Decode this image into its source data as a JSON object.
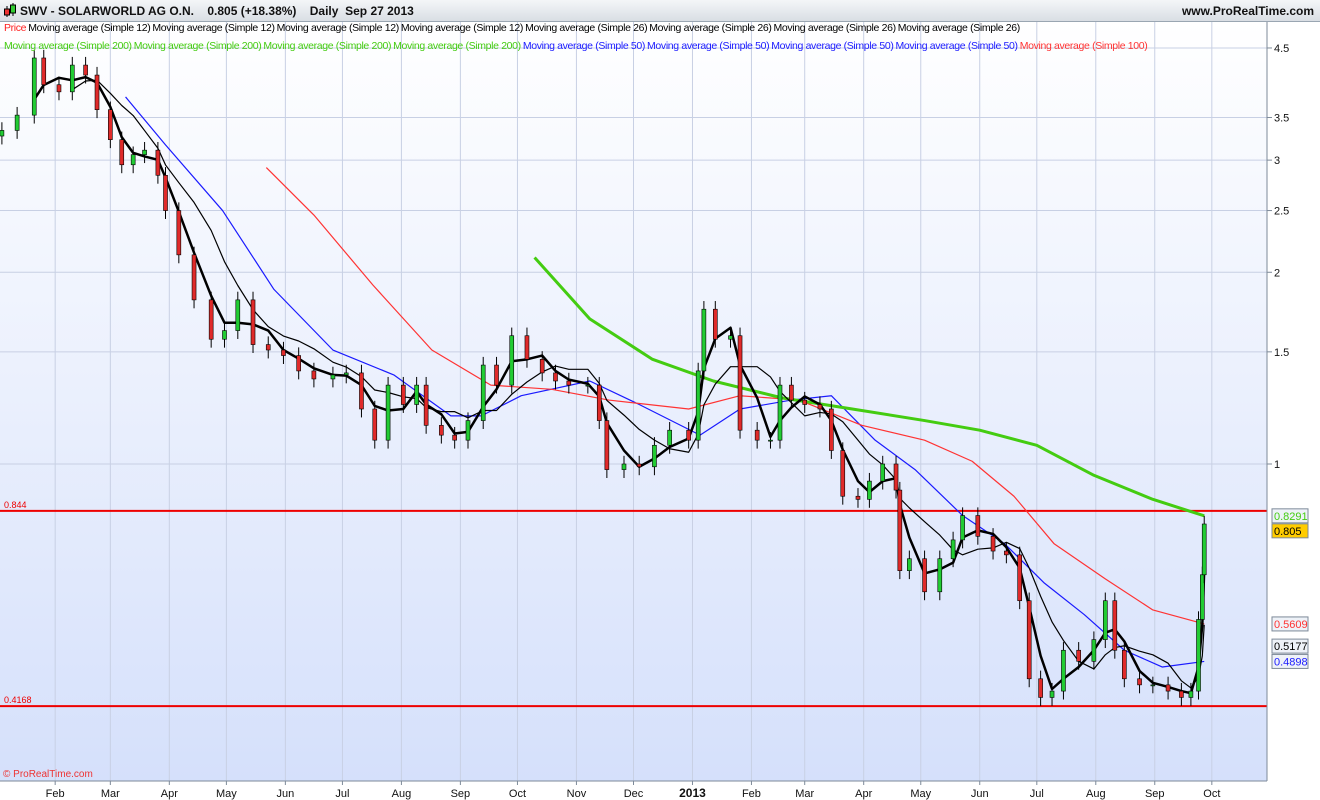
{
  "header": {
    "symbol": "SWV - SOLARWORLD AG O.N.",
    "price": "0.805 (+18.38%)",
    "period": "Daily",
    "date": "Sep 27 2013",
    "site": "www.ProRealTime.com"
  },
  "legend_row1": [
    {
      "text": "Price",
      "color": "#ff2020"
    },
    {
      "text": "Moving average (Simple 12)",
      "color": "#000000"
    },
    {
      "text": "Moving average (Simple 12)",
      "color": "#000000"
    },
    {
      "text": "Moving average (Simple 12)",
      "color": "#000000"
    },
    {
      "text": "Moving average (Simple 12)",
      "color": "#000000"
    },
    {
      "text": "Moving average (Simple 26)",
      "color": "#000000"
    },
    {
      "text": "Moving average (Simple 26)",
      "color": "#000000"
    },
    {
      "text": "Moving average (Simple 26)",
      "color": "#000000"
    },
    {
      "text": "Moving average (Simple 26)",
      "color": "#000000"
    }
  ],
  "legend_row2": [
    {
      "text": "Moving average (Simple 200)",
      "color": "#44cc11"
    },
    {
      "text": "Moving average (Simple 200)",
      "color": "#44cc11"
    },
    {
      "text": "Moving average (Simple 200)",
      "color": "#44cc11"
    },
    {
      "text": "Moving average (Simple 200)",
      "color": "#44cc11"
    },
    {
      "text": "Moving average (Simple 50)",
      "color": "#1a1aff"
    },
    {
      "text": "Moving average (Simple 50)",
      "color": "#1a1aff"
    },
    {
      "text": "Moving average (Simple 50)",
      "color": "#1a1aff"
    },
    {
      "text": "Moving average (Simple 50)",
      "color": "#1a1aff"
    },
    {
      "text": "Moving average (Simple 100)",
      "color": "#ff3333"
    }
  ],
  "copyright": "© ProRealTime.com",
  "chart_data": {
    "type": "candlestick",
    "y_scale": "log",
    "ylim": [
      0.33,
      4.9
    ],
    "xlim": [
      "2012-01-03",
      "2013-10-30"
    ],
    "grid": true,
    "y_ticks": [
      4.5,
      3.5,
      3,
      2.5,
      2,
      1.5,
      1
    ],
    "x_ticks": [
      {
        "date": "2012-02-01",
        "label": "Feb"
      },
      {
        "date": "2012-03-01",
        "label": "Mar"
      },
      {
        "date": "2012-04-01",
        "label": "Apr"
      },
      {
        "date": "2012-05-01",
        "label": "May"
      },
      {
        "date": "2012-06-01",
        "label": "Jun"
      },
      {
        "date": "2012-07-01",
        "label": "Jul"
      },
      {
        "date": "2012-08-01",
        "label": "Aug"
      },
      {
        "date": "2012-09-01",
        "label": "Sep"
      },
      {
        "date": "2012-10-01",
        "label": "Oct"
      },
      {
        "date": "2012-11-01",
        "label": "Nov"
      },
      {
        "date": "2012-12-01",
        "label": "Dec"
      },
      {
        "date": "2013-01-01",
        "label": "2013"
      },
      {
        "date": "2013-02-01",
        "label": "Feb"
      },
      {
        "date": "2013-03-01",
        "label": "Mar"
      },
      {
        "date": "2013-04-01",
        "label": "Apr"
      },
      {
        "date": "2013-05-01",
        "label": "May"
      },
      {
        "date": "2013-06-01",
        "label": "Jun"
      },
      {
        "date": "2013-07-01",
        "label": "Jul"
      },
      {
        "date": "2013-08-01",
        "label": "Aug"
      },
      {
        "date": "2013-09-01",
        "label": "Sep"
      },
      {
        "date": "2013-10-01",
        "label": "Oct"
      }
    ],
    "horizontal_lines": [
      {
        "value": 0.844,
        "label": "0.844",
        "color": "#ee0000"
      },
      {
        "value": 0.4168,
        "label": "0.4168",
        "color": "#ee0000"
      }
    ],
    "price": [
      [
        "2012-01-04",
        3.34
      ],
      [
        "2012-01-12",
        3.53
      ],
      [
        "2012-01-21",
        4.34
      ],
      [
        "2012-01-26",
        3.94
      ],
      [
        "2012-02-03",
        3.84
      ],
      [
        "2012-02-10",
        4.23
      ],
      [
        "2012-02-17",
        4.08
      ],
      [
        "2012-02-23",
        3.6
      ],
      [
        "2012-03-01",
        3.23
      ],
      [
        "2012-03-07",
        2.95
      ],
      [
        "2012-03-13",
        3.06
      ],
      [
        "2012-03-19",
        3.11
      ],
      [
        "2012-03-26",
        2.84
      ],
      [
        "2012-03-30",
        2.5
      ],
      [
        "2012-04-06",
        2.13
      ],
      [
        "2012-04-14",
        1.81
      ],
      [
        "2012-04-23",
        1.57
      ],
      [
        "2012-04-30",
        1.62
      ],
      [
        "2012-05-07",
        1.81
      ],
      [
        "2012-05-15",
        1.54
      ],
      [
        "2012-05-23",
        1.51
      ],
      [
        "2012-05-31",
        1.48
      ],
      [
        "2012-06-08",
        1.4
      ],
      [
        "2012-06-16",
        1.36
      ],
      [
        "2012-06-26",
        1.38
      ],
      [
        "2012-07-03",
        1.39
      ],
      [
        "2012-07-11",
        1.22
      ],
      [
        "2012-07-18",
        1.09
      ],
      [
        "2012-07-25",
        1.33
      ],
      [
        "2012-08-02",
        1.24
      ],
      [
        "2012-08-09",
        1.33
      ],
      [
        "2012-08-14",
        1.15
      ],
      [
        "2012-08-22",
        1.11
      ],
      [
        "2012-08-29",
        1.09
      ],
      [
        "2012-09-05",
        1.17
      ],
      [
        "2012-09-13",
        1.43
      ],
      [
        "2012-09-20",
        1.33
      ],
      [
        "2012-09-28",
        1.59
      ],
      [
        "2012-10-06",
        1.46
      ],
      [
        "2012-10-14",
        1.39
      ],
      [
        "2012-10-21",
        1.35
      ],
      [
        "2012-10-28",
        1.33
      ],
      [
        "2012-11-07",
        1.33
      ],
      [
        "2012-11-13",
        1.17
      ],
      [
        "2012-11-17",
        0.98
      ],
      [
        "2012-11-26",
        1.0
      ],
      [
        "2012-12-04",
        0.99
      ],
      [
        "2012-12-12",
        1.07
      ],
      [
        "2012-12-20",
        1.13
      ],
      [
        "2012-12-30",
        1.09
      ],
      [
        "2013-01-04",
        1.4
      ],
      [
        "2013-01-07",
        1.75
      ],
      [
        "2013-01-13",
        1.57
      ],
      [
        "2013-01-21",
        1.59
      ],
      [
        "2013-01-26",
        1.13
      ],
      [
        "2013-02-04",
        1.09
      ],
      [
        "2013-02-11",
        1.09
      ],
      [
        "2013-02-16",
        1.33
      ],
      [
        "2013-02-22",
        1.26
      ],
      [
        "2013-03-01",
        1.24
      ],
      [
        "2013-03-09",
        1.22
      ],
      [
        "2013-03-15",
        1.05
      ],
      [
        "2013-03-21",
        0.89
      ],
      [
        "2013-03-29",
        0.88
      ],
      [
        "2013-04-04",
        0.94
      ],
      [
        "2013-04-11",
        1.0
      ],
      [
        "2013-04-18",
        0.91
      ],
      [
        "2013-04-20",
        0.68
      ],
      [
        "2013-04-25",
        0.71
      ],
      [
        "2013-05-03",
        0.63
      ],
      [
        "2013-05-11",
        0.71
      ],
      [
        "2013-05-18",
        0.76
      ],
      [
        "2013-05-23",
        0.83
      ],
      [
        "2013-05-31",
        0.77
      ],
      [
        "2013-06-08",
        0.73
      ],
      [
        "2013-06-15",
        0.72
      ],
      [
        "2013-06-22",
        0.61
      ],
      [
        "2013-06-27",
        0.46
      ],
      [
        "2013-07-03",
        0.43
      ],
      [
        "2013-07-09",
        0.44
      ],
      [
        "2013-07-15",
        0.51
      ],
      [
        "2013-07-23",
        0.49
      ],
      [
        "2013-07-31",
        0.53
      ],
      [
        "2013-08-06",
        0.61
      ],
      [
        "2013-08-11",
        0.51
      ],
      [
        "2013-08-16",
        0.46
      ],
      [
        "2013-08-24",
        0.45
      ],
      [
        "2013-08-31",
        0.45
      ],
      [
        "2013-09-08",
        0.44
      ],
      [
        "2013-09-15",
        0.43
      ],
      [
        "2013-09-20",
        0.44
      ],
      [
        "2013-09-24",
        0.57
      ],
      [
        "2013-09-26",
        0.67
      ],
      [
        "2013-09-27",
        0.805
      ]
    ],
    "series": [
      {
        "name": "Moving average (Simple 50)",
        "color": "#1a1aff",
        "last": "0.4898",
        "points": [
          [
            "2012-03-09",
            3.77
          ],
          [
            "2012-03-30",
            3.17
          ],
          [
            "2012-04-29",
            2.5
          ],
          [
            "2012-05-26",
            1.88
          ],
          [
            "2012-06-26",
            1.51
          ],
          [
            "2012-07-28",
            1.38
          ],
          [
            "2012-08-27",
            1.19
          ],
          [
            "2012-09-12",
            1.19
          ],
          [
            "2012-10-03",
            1.28
          ],
          [
            "2012-11-08",
            1.35
          ],
          [
            "2012-12-04",
            1.24
          ],
          [
            "2013-01-05",
            1.11
          ],
          [
            "2013-01-26",
            1.22
          ],
          [
            "2013-02-22",
            1.26
          ],
          [
            "2013-03-15",
            1.28
          ],
          [
            "2013-04-07",
            1.09
          ],
          [
            "2013-04-28",
            0.98
          ],
          [
            "2013-05-23",
            0.83
          ],
          [
            "2013-06-14",
            0.75
          ],
          [
            "2013-07-05",
            0.65
          ],
          [
            "2013-07-26",
            0.58
          ],
          [
            "2013-08-16",
            0.51
          ],
          [
            "2013-09-05",
            0.48
          ],
          [
            "2013-09-27",
            0.4898
          ]
        ]
      },
      {
        "name": "Moving average (Simple 100)",
        "color": "#ff3333",
        "last": "0.5609",
        "points": [
          [
            "2012-05-22",
            2.92
          ],
          [
            "2012-06-16",
            2.46
          ],
          [
            "2012-07-17",
            1.91
          ],
          [
            "2012-08-17",
            1.51
          ],
          [
            "2012-09-17",
            1.33
          ],
          [
            "2012-10-19",
            1.31
          ],
          [
            "2012-11-18",
            1.26
          ],
          [
            "2012-12-30",
            1.22
          ],
          [
            "2013-01-26",
            1.28
          ],
          [
            "2013-02-26",
            1.26
          ],
          [
            "2013-03-31",
            1.15
          ],
          [
            "2013-05-03",
            1.09
          ],
          [
            "2013-05-28",
            1.01
          ],
          [
            "2013-06-19",
            0.89
          ],
          [
            "2013-07-10",
            0.75
          ],
          [
            "2013-08-06",
            0.66
          ],
          [
            "2013-08-31",
            0.59
          ],
          [
            "2013-09-27",
            0.5609
          ]
        ]
      },
      {
        "name": "Moving average (Simple 200)",
        "color": "#44cc11",
        "last": "0.8291",
        "points": [
          [
            "2012-10-10",
            2.11
          ],
          [
            "2012-11-08",
            1.69
          ],
          [
            "2012-12-11",
            1.46
          ],
          [
            "2013-01-12",
            1.35
          ],
          [
            "2013-02-17",
            1.27
          ],
          [
            "2013-03-26",
            1.22
          ],
          [
            "2013-05-03",
            1.17
          ],
          [
            "2013-06-01",
            1.13
          ],
          [
            "2013-07-01",
            1.07
          ],
          [
            "2013-07-31",
            0.96
          ],
          [
            "2013-08-31",
            0.88
          ],
          [
            "2013-09-27",
            0.8291
          ]
        ]
      },
      {
        "name": "Moving average (Simple 12)",
        "color": "#000000",
        "last": "0.5177",
        "period": 3,
        "points": []
      },
      {
        "name": "Moving average (Simple 26)",
        "color": "#000000",
        "period": 6,
        "points": []
      }
    ],
    "last_price_label": "0.805"
  }
}
